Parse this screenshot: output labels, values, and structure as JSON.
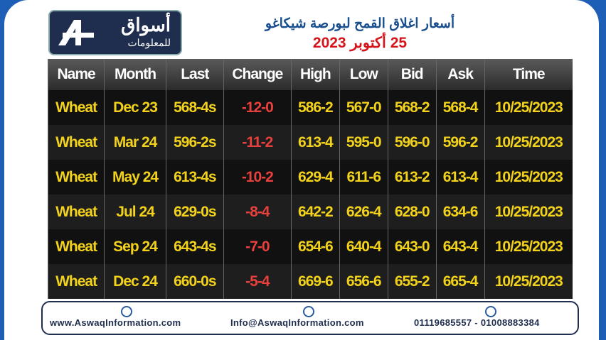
{
  "header": {
    "logo_main": "أسواق",
    "logo_sub": "للمعلومات",
    "title": "أسعار اغلاق القمح لبورصة شيكاغو",
    "date": "25 أكتوبر 2023"
  },
  "table": {
    "columns": [
      "Name",
      "Month",
      "Last",
      "Change",
      "High",
      "Low",
      "Bid",
      "Ask",
      "Time"
    ],
    "rows": [
      [
        "Wheat",
        "Dec 23",
        "568-4s",
        "-12-0",
        "586-2",
        "567-0",
        "568-2",
        "568-4",
        "10/25/2023"
      ],
      [
        "Wheat",
        "Mar 24",
        "596-2s",
        "-11-2",
        "613-4",
        "595-0",
        "596-0",
        "596-2",
        "10/25/2023"
      ],
      [
        "Wheat",
        "May 24",
        "613-4s",
        "-10-2",
        "629-4",
        "611-6",
        "613-2",
        "613-4",
        "10/25/2023"
      ],
      [
        "Wheat",
        "Jul 24",
        "629-0s",
        "-8-4",
        "642-2",
        "626-4",
        "628-0",
        "634-6",
        "10/25/2023"
      ],
      [
        "Wheat",
        "Sep 24",
        "643-4s",
        "-7-0",
        "654-6",
        "640-4",
        "643-0",
        "643-4",
        "10/25/2023"
      ],
      [
        "Wheat",
        "Dec 24",
        "660-0s",
        "-5-4",
        "669-6",
        "656-6",
        "655-2",
        "665-4",
        "10/25/2023"
      ]
    ]
  },
  "footer": {
    "website": "www.AswaqInformation.com",
    "email": "Info@AswaqInformation.com",
    "phones": "01119685557 - 01008883384"
  }
}
